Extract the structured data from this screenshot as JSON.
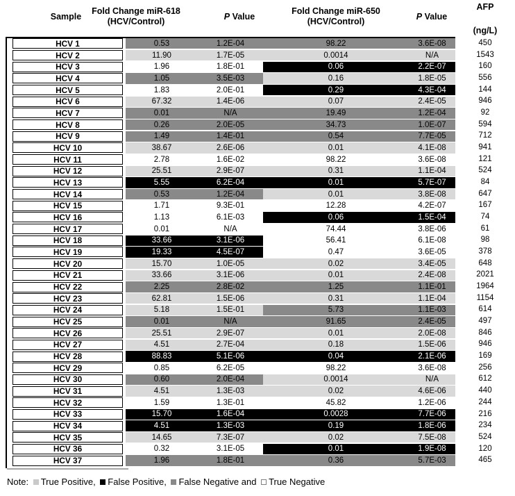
{
  "header": {
    "sample": "Sample",
    "fc618": {
      "line1": "Fold Change miR-618",
      "line2": "(HCV/Control)"
    },
    "p618": {
      "italic": "P",
      "rest": " Value"
    },
    "fc650": {
      "line1": "Fold Change miR-650",
      "line2": "(HCV/Control)"
    },
    "p650": {
      "italic": "P",
      "rest": " Value"
    },
    "afp": {
      "line1": "AFP",
      "line2": "(ng/L)"
    }
  },
  "legend_colors": {
    "true_positive": "#D9D9D9",
    "false_positive": "#000000",
    "false_negative": "#898989",
    "true_negative": "#FFFFFF"
  },
  "note": {
    "prefix": "Note: ",
    "segments": [
      {
        "class": "tp",
        "label": "True Positive",
        "suffix": ", "
      },
      {
        "class": "fp",
        "label": "False Positive",
        "suffix": ", "
      },
      {
        "class": "fn",
        "label": "False Negative",
        "suffix": " and "
      },
      {
        "class": "tn",
        "label": "True Negative",
        "suffix": ""
      }
    ]
  },
  "rows": [
    {
      "sample": "HCV 1",
      "fc618": "0.53",
      "p618": "1.2E-04",
      "c618": "fn",
      "fc650": "98.22",
      "p650": "3.6E-08",
      "c650": "fn",
      "afp": "450"
    },
    {
      "sample": "HCV 2",
      "fc618": "11.90",
      "p618": "1.7E-05",
      "c618": "tp",
      "fc650": "0.0014",
      "p650": "N/A",
      "c650": "tp",
      "afp": "1543"
    },
    {
      "sample": "HCV 3",
      "fc618": "1.96",
      "p618": "1.8E-01",
      "c618": "tn",
      "fc650": "0.06",
      "p650": "2.2E-07",
      "c650": "fp",
      "afp": "160"
    },
    {
      "sample": "HCV 4",
      "fc618": "1.05",
      "p618": "3.5E-03",
      "c618": "fn",
      "fc650": "0.16",
      "p650": "1.8E-05",
      "c650": "tp",
      "afp": "556"
    },
    {
      "sample": "HCV 5",
      "fc618": "1.83",
      "p618": "2.0E-01",
      "c618": "tn",
      "fc650": "0.29",
      "p650": "4.3E-04",
      "c650": "fp",
      "afp": "144"
    },
    {
      "sample": "HCV 6",
      "fc618": "67.32",
      "p618": "1.4E-06",
      "c618": "tp",
      "fc650": "0.07",
      "p650": "2.4E-05",
      "c650": "tp",
      "afp": "946"
    },
    {
      "sample": "HCV 7",
      "fc618": "0.01",
      "p618": "N/A",
      "c618": "fn",
      "fc650": "19.49",
      "p650": "1.2E-04",
      "c650": "fn",
      "afp": "92"
    },
    {
      "sample": "HCV 8",
      "fc618": "0.26",
      "p618": "2.0E-05",
      "c618": "fn",
      "fc650": "34.73",
      "p650": "1.0E-07",
      "c650": "fn",
      "afp": "594"
    },
    {
      "sample": "HCV 9",
      "fc618": "1.49",
      "p618": "1.4E-01",
      "c618": "fn",
      "fc650": "0.54",
      "p650": "7.7E-05",
      "c650": "fn",
      "afp": "712"
    },
    {
      "sample": "HCV 10",
      "fc618": "38.67",
      "p618": "2.6E-06",
      "c618": "tp",
      "fc650": "0.01",
      "p650": "4.1E-08",
      "c650": "tp",
      "afp": "941"
    },
    {
      "sample": "HCV 11",
      "fc618": "2.78",
      "p618": "1.6E-02",
      "c618": "tn",
      "fc650": "98.22",
      "p650": "3.6E-08",
      "c650": "tn",
      "afp": "121"
    },
    {
      "sample": "HCV 12",
      "fc618": "25.51",
      "p618": "2.9E-07",
      "c618": "tp",
      "fc650": "0.31",
      "p650": "1.1E-04",
      "c650": "tp",
      "afp": "524"
    },
    {
      "sample": "HCV 13",
      "fc618": "5.55",
      "p618": "6.2E-04",
      "c618": "fp",
      "fc650": "0.01",
      "p650": "5.7E-07",
      "c650": "fp",
      "afp": "84"
    },
    {
      "sample": "HCV 14",
      "fc618": "0.53",
      "p618": "1.2E-04",
      "c618": "fn",
      "fc650": "0.01",
      "p650": "3.8E-08",
      "c650": "tp",
      "afp": "647"
    },
    {
      "sample": "HCV 15",
      "fc618": "1.71",
      "p618": "9.3E-01",
      "c618": "tn",
      "fc650": "12.28",
      "p650": "4.2E-07",
      "c650": "tn",
      "afp": "167"
    },
    {
      "sample": "HCV 16",
      "fc618": "1.13",
      "p618": "6.1E-03",
      "c618": "tn",
      "fc650": "0.06",
      "p650": "1.5E-04",
      "c650": "fp",
      "afp": "74"
    },
    {
      "sample": "HCV 17",
      "fc618": "0.01",
      "p618": "N/A",
      "c618": "tn",
      "fc650": "74.44",
      "p650": "3.8E-06",
      "c650": "tn",
      "afp": "61"
    },
    {
      "sample": "HCV 18",
      "fc618": "33.66",
      "p618": "3.1E-06",
      "c618": "fp",
      "fc650": "56.41",
      "p650": "6.1E-08",
      "c650": "tn",
      "afp": "98"
    },
    {
      "sample": "HCV 19",
      "fc618": "19.33",
      "p618": "4.5E-07",
      "c618": "fp",
      "fc650": "0.47",
      "p650": "3.6E-05",
      "c650": "tn",
      "afp": "378"
    },
    {
      "sample": "HCV 20",
      "fc618": "15.70",
      "p618": "1.0E-05",
      "c618": "tp",
      "fc650": "0.02",
      "p650": "3.4E-05",
      "c650": "tp",
      "afp": "648"
    },
    {
      "sample": "HCV 21",
      "fc618": "33.66",
      "p618": "3.1E-06",
      "c618": "tp",
      "fc650": "0.01",
      "p650": "2.4E-08",
      "c650": "tp",
      "afp": "2021"
    },
    {
      "sample": "HCV 22",
      "fc618": "2.25",
      "p618": "2.8E-02",
      "c618": "fn",
      "fc650": "1.25",
      "p650": "1.1E-01",
      "c650": "fn",
      "afp": "1964"
    },
    {
      "sample": "HCV 23",
      "fc618": "62.81",
      "p618": "1.5E-06",
      "c618": "tp",
      "fc650": "0.31",
      "p650": "1.1E-04",
      "c650": "tp",
      "afp": "1154"
    },
    {
      "sample": "HCV 24",
      "fc618": "5.18",
      "p618": "1.5E-01",
      "c618": "tp",
      "fc650": "5.73",
      "p650": "1.1E-03",
      "c650": "fn",
      "afp": "614"
    },
    {
      "sample": "HCV 25",
      "fc618": "0.01",
      "p618": "N/A",
      "c618": "fn",
      "fc650": "91.65",
      "p650": "2.4E-05",
      "c650": "fn",
      "afp": "497"
    },
    {
      "sample": "HCV 26",
      "fc618": "25.51",
      "p618": "2.9E-07",
      "c618": "tp",
      "fc650": "0.01",
      "p650": "2.0E-08",
      "c650": "tp",
      "afp": "846"
    },
    {
      "sample": "HCV 27",
      "fc618": "4.51",
      "p618": "2.7E-04",
      "c618": "tp",
      "fc650": "0.18",
      "p650": "1.5E-06",
      "c650": "tp",
      "afp": "946"
    },
    {
      "sample": "HCV 28",
      "fc618": "88.83",
      "p618": "5.1E-06",
      "c618": "fp",
      "fc650": "0.04",
      "p650": "2.1E-06",
      "c650": "fp",
      "afp": "169"
    },
    {
      "sample": "HCV 29",
      "fc618": "0.85",
      "p618": "6.2E-05",
      "c618": "tn",
      "fc650": "98.22",
      "p650": "3.6E-08",
      "c650": "tn",
      "afp": "256"
    },
    {
      "sample": "HCV 30",
      "fc618": "0.60",
      "p618": "2.0E-04",
      "c618": "fn",
      "fc650": "0.0014",
      "p650": "N/A",
      "c650": "tp",
      "afp": "612"
    },
    {
      "sample": "HCV 31",
      "fc618": "4.51",
      "p618": "1.3E-03",
      "c618": "tp",
      "fc650": "0.02",
      "p650": "4.6E-06",
      "c650": "tp",
      "afp": "440"
    },
    {
      "sample": "HCV 32",
      "fc618": "1.59",
      "p618": "1.3E-01",
      "c618": "tn",
      "fc650": "45.82",
      "p650": "1.2E-06",
      "c650": "tn",
      "afp": "244"
    },
    {
      "sample": "HCV 33",
      "fc618": "15.70",
      "p618": "1.6E-04",
      "c618": "fp",
      "fc650": "0.0028",
      "p650": "7.7E-06",
      "c650": "fp",
      "afp": "216"
    },
    {
      "sample": "HCV 34",
      "fc618": "4.51",
      "p618": "1.3E-03",
      "c618": "fp",
      "fc650": "0.19",
      "p650": "1.8E-06",
      "c650": "fp",
      "afp": "234"
    },
    {
      "sample": "HCV 35",
      "fc618": "14.65",
      "p618": "7.3E-07",
      "c618": "tp",
      "fc650": "0.02",
      "p650": "7.5E-08",
      "c650": "tp",
      "afp": "524"
    },
    {
      "sample": "HCV 36",
      "fc618": "0.32",
      "p618": "3.1E-05",
      "c618": "tn",
      "fc650": "0.01",
      "p650": "1.9E-08",
      "c650": "fp",
      "afp": "120"
    },
    {
      "sample": "HCV 37",
      "fc618": "1.96",
      "p618": "1.8E-01",
      "c618": "fn",
      "fc650": "0.36",
      "p650": "5.7E-03",
      "c650": "fn",
      "afp": "465"
    }
  ]
}
